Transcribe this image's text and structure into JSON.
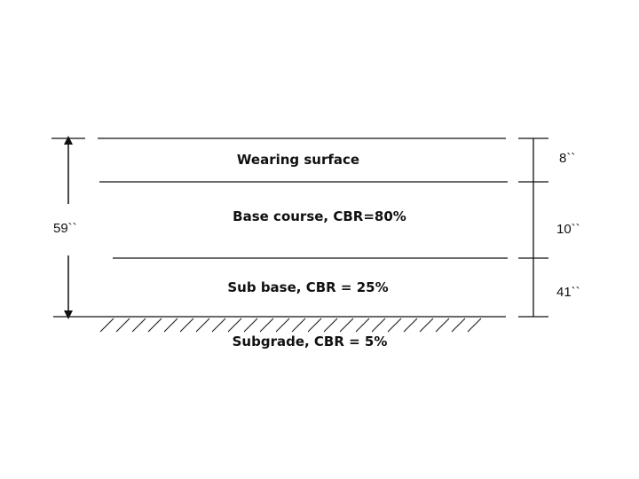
{
  "diagram": {
    "layers": [
      {
        "name": "Wearing surface",
        "thickness": "8``"
      },
      {
        "name": "Base course, CBR=80%",
        "thickness": "10``"
      },
      {
        "name": "Sub base, CBR = 25%",
        "thickness": "41``"
      }
    ],
    "subgrade": "Subgrade, CBR = 5%",
    "total_thickness": "59``",
    "line_color": "#111111"
  }
}
